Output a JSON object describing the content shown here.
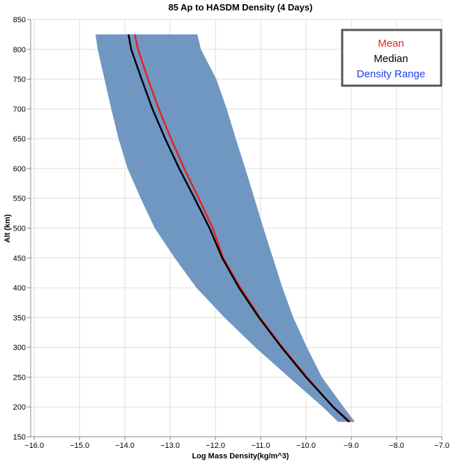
{
  "chart_data": {
    "type": "line",
    "title": "85 Ap to HASDM Density (4 Days)",
    "x_label": "Log Mass Density(kg/m^3)",
    "y_label": "Alt (km)",
    "y": [
      175,
      200,
      250,
      300,
      350,
      400,
      450,
      500,
      550,
      600,
      650,
      700,
      750,
      800,
      825
    ],
    "series": [
      {
        "name": "Mean",
        "color": "#e8211c",
        "values": [
          -9.02,
          -9.4,
          -9.98,
          -10.52,
          -11.02,
          -11.45,
          -11.83,
          -12.06,
          -12.37,
          -12.69,
          -12.98,
          -13.25,
          -13.49,
          -13.71,
          -13.78
        ]
      },
      {
        "name": "Median",
        "color": "#000000",
        "values": [
          -9.05,
          -9.4,
          -10.0,
          -10.54,
          -11.04,
          -11.48,
          -11.85,
          -12.13,
          -12.46,
          -12.8,
          -13.11,
          -13.39,
          -13.63,
          -13.86,
          -13.92
        ]
      }
    ],
    "band": {
      "name": "Density Range",
      "color": "#7097c2",
      "label_color": "#1f3cf0",
      "lower": [
        -9.29,
        -9.63,
        -10.38,
        -11.12,
        -11.8,
        -12.42,
        -12.9,
        -13.34,
        -13.65,
        -13.94,
        -14.14,
        -14.3,
        -14.45,
        -14.6,
        -14.65
      ],
      "upper": [
        -8.92,
        -9.17,
        -9.65,
        -9.98,
        -10.28,
        -10.52,
        -10.73,
        -10.94,
        -11.14,
        -11.34,
        -11.55,
        -11.75,
        -11.98,
        -12.32,
        -12.4
      ]
    },
    "xlim": [
      -16.08,
      -7
    ],
    "ylim": [
      150,
      850
    ],
    "xticks": [
      {
        "value": -16,
        "label": "−16.0"
      },
      {
        "value": -15,
        "label": "−15.0"
      },
      {
        "value": -14,
        "label": "−14.0"
      },
      {
        "value": -13,
        "label": "−13.0"
      },
      {
        "value": -12,
        "label": "−12.0"
      },
      {
        "value": -11,
        "label": "−11.0"
      },
      {
        "value": -10,
        "label": "−10.0"
      },
      {
        "value": -9,
        "label": "−9.0"
      },
      {
        "value": -8,
        "label": "−8.0"
      },
      {
        "value": -7,
        "label": "−7.0"
      }
    ],
    "yticks": [
      150,
      200,
      250,
      300,
      350,
      400,
      450,
      500,
      550,
      600,
      650,
      700,
      750,
      800,
      850
    ],
    "grid": true
  }
}
